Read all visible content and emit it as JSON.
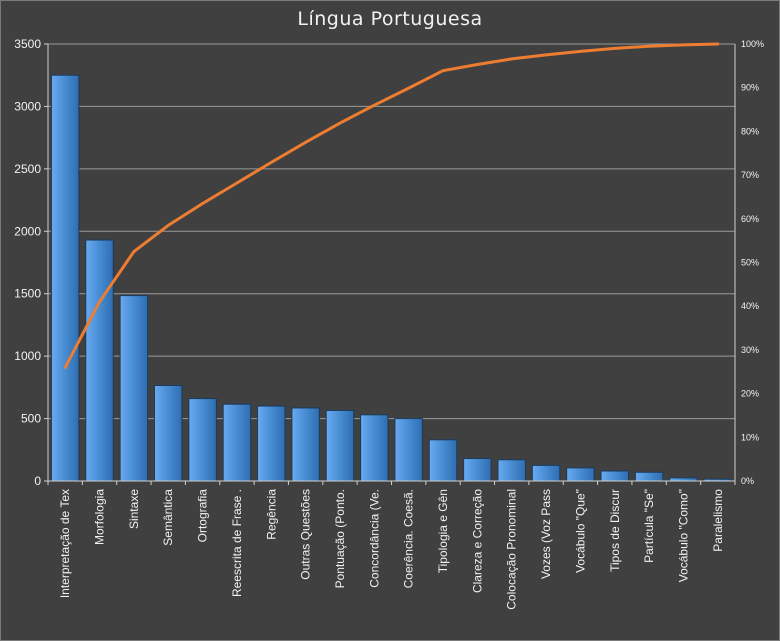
{
  "title": "Língua Portuguesa",
  "chart_data": {
    "type": "bar",
    "title": "Língua Portuguesa",
    "categories": [
      "Interpretação de Tex",
      "Morfologia",
      "Sintaxe",
      "Semântica",
      "Ortografia",
      "Reescrita de Frase .",
      "Regência",
      "Outras Questões",
      "Pontuação (Ponto.",
      "Concordância (Ve.",
      "Coerência. Coesã.",
      "Tipologia e Gên",
      "Clareza e Correção",
      "Colocação Pronominal",
      "Vozes (Voz Pass",
      "Vocábulo \"Que\"",
      "Tipos de Discur",
      "Partícula \"Se\"",
      "Vocábulo \"Como\"",
      "Paralelismo"
    ],
    "series": [
      {
        "type": "bar",
        "axis": "left",
        "values": [
          3250,
          1930,
          1485,
          765,
          660,
          615,
          600,
          585,
          565,
          530,
          500,
          330,
          180,
          170,
          125,
          105,
          80,
          70,
          25,
          15
        ]
      },
      {
        "type": "line",
        "axis": "right",
        "values": [
          0.26,
          0.41,
          0.525,
          0.585,
          0.635,
          0.682,
          0.729,
          0.775,
          0.819,
          0.86,
          0.899,
          0.939,
          0.953,
          0.966,
          0.975,
          0.983,
          0.99,
          0.995,
          0.998,
          1.0
        ]
      }
    ],
    "ylim": [
      0,
      3500
    ],
    "y_ticks": [
      0,
      500,
      1000,
      1500,
      2000,
      2500,
      3000,
      3500
    ],
    "y2lim": [
      0,
      1
    ],
    "y2_ticks": [
      "0%",
      "10%",
      "20%",
      "30%",
      "40%",
      "50%",
      "60%",
      "70%",
      "80%",
      "90%",
      "100%"
    ],
    "grid": true,
    "colors": {
      "bar_fill": "#4a8fd6",
      "bar_edge": "#1b3a5c",
      "line": "#ed7d31",
      "background": "#404040",
      "gridline": "#9a9a9a",
      "text": "#f2f2f2"
    }
  }
}
